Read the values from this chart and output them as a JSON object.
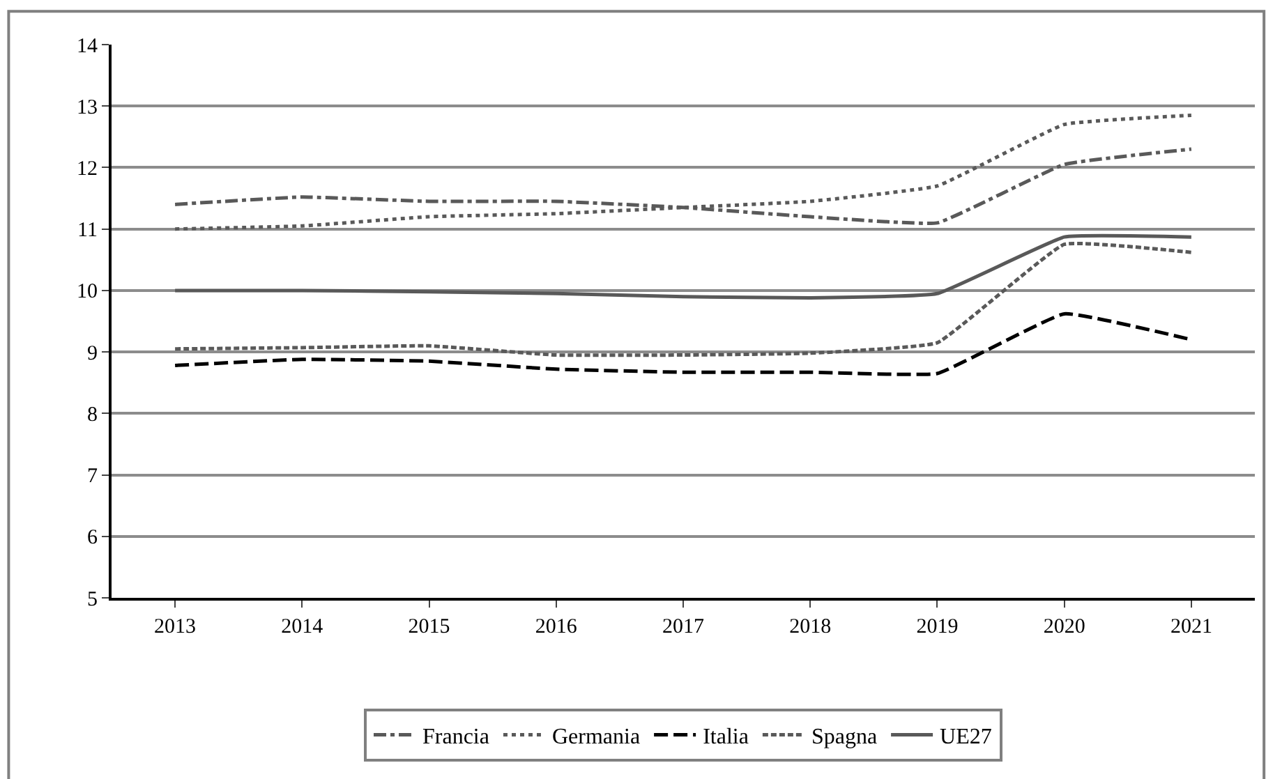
{
  "chart_data": {
    "type": "line",
    "categories": [
      "2013",
      "2014",
      "2015",
      "2016",
      "2017",
      "2018",
      "2019",
      "2020",
      "2021"
    ],
    "series": [
      {
        "name": "Francia",
        "color": "#595959",
        "line_style": "dashdot",
        "values": [
          11.4,
          11.52,
          11.45,
          11.45,
          11.35,
          11.2,
          11.1,
          12.05,
          12.3
        ]
      },
      {
        "name": "Germania",
        "color": "#595959",
        "line_style": "dotted",
        "values": [
          11.0,
          11.05,
          11.2,
          11.25,
          11.35,
          11.45,
          11.7,
          12.7,
          12.85
        ]
      },
      {
        "name": "Italia",
        "color": "#000000",
        "line_style": "longdash",
        "values": [
          8.78,
          8.88,
          8.85,
          8.72,
          8.67,
          8.67,
          8.65,
          9.62,
          9.2
        ]
      },
      {
        "name": "Spagna",
        "color": "#595959",
        "line_style": "dashed",
        "values": [
          9.05,
          9.07,
          9.1,
          8.95,
          8.95,
          8.98,
          9.15,
          10.75,
          10.62
        ]
      },
      {
        "name": "UE27",
        "color": "#595959",
        "line_style": "solid",
        "values": [
          10.0,
          10.0,
          9.98,
          9.95,
          9.9,
          9.88,
          9.95,
          10.87,
          10.87
        ]
      }
    ],
    "ylim": [
      5,
      14
    ],
    "yticks": [
      5,
      6,
      7,
      8,
      9,
      10,
      11,
      12,
      13,
      14
    ],
    "grid": "y",
    "legend": "bottom",
    "marker": "none"
  }
}
